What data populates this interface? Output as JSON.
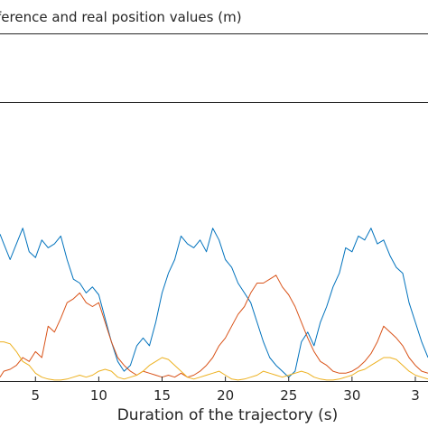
{
  "chart_data": {
    "type": "line",
    "title": "ference and real position values (m)",
    "xlabel": "Duration of the trajectory (s)",
    "ylabel": "",
    "xlim": [
      2.2,
      36.0
    ],
    "x_ticks": [
      "5",
      "10",
      "15",
      "20",
      "25",
      "30",
      "3"
    ],
    "grid": false,
    "legend": "none",
    "series": [
      {
        "color": "#0072bd",
        "x": [
          2.2,
          2.5,
          3.0,
          3.5,
          4.0,
          4.5,
          5.0,
          5.5,
          6.0,
          6.5,
          7.0,
          7.5,
          8.0,
          8.5,
          9.0,
          9.5,
          10.0,
          10.5,
          11.0,
          11.5,
          12.0,
          12.5,
          13.0,
          13.5,
          14.0,
          14.5,
          15.0,
          15.5,
          16.0,
          16.5,
          17.0,
          17.5,
          18.0,
          18.5,
          19.0,
          19.5,
          20.0,
          20.5,
          21.0,
          21.5,
          22.0,
          22.5,
          23.0,
          23.5,
          24.0,
          24.5,
          25.0,
          25.5,
          26.0,
          26.5,
          27.0,
          27.5,
          28.0,
          28.5,
          29.0,
          29.5,
          30.0,
          30.5,
          31.0,
          31.5,
          32.0,
          32.5,
          33.0,
          33.5,
          34.0,
          34.5,
          35.0,
          35.5,
          36.0
        ],
        "y": [
          0.75,
          0.7,
          0.62,
          0.7,
          0.78,
          0.66,
          0.63,
          0.72,
          0.68,
          0.7,
          0.74,
          0.62,
          0.52,
          0.5,
          0.45,
          0.48,
          0.44,
          0.32,
          0.2,
          0.1,
          0.05,
          0.08,
          0.18,
          0.22,
          0.18,
          0.3,
          0.45,
          0.55,
          0.62,
          0.74,
          0.7,
          0.68,
          0.72,
          0.66,
          0.78,
          0.72,
          0.62,
          0.58,
          0.5,
          0.45,
          0.4,
          0.3,
          0.2,
          0.12,
          0.08,
          0.05,
          0.02,
          0.05,
          0.2,
          0.25,
          0.18,
          0.3,
          0.38,
          0.48,
          0.55,
          0.68,
          0.66,
          0.74,
          0.72,
          0.78,
          0.7,
          0.72,
          0.64,
          0.58,
          0.55,
          0.4,
          0.3,
          0.2,
          0.12
        ]
      },
      {
        "color": "#d95319",
        "x": [
          2.2,
          2.5,
          3.0,
          3.5,
          4.0,
          4.5,
          5.0,
          5.5,
          6.0,
          6.5,
          7.0,
          7.5,
          8.0,
          8.5,
          9.0,
          9.5,
          10.0,
          10.5,
          11.0,
          11.5,
          12.0,
          12.5,
          13.0,
          13.5,
          14.0,
          14.5,
          15.0,
          15.5,
          16.0,
          16.5,
          17.0,
          17.5,
          18.0,
          18.5,
          19.0,
          19.5,
          20.0,
          20.5,
          21.0,
          21.5,
          22.0,
          22.5,
          23.0,
          23.5,
          24.0,
          24.5,
          25.0,
          25.5,
          26.0,
          26.5,
          27.0,
          27.5,
          28.0,
          28.5,
          29.0,
          29.5,
          30.0,
          30.5,
          31.0,
          31.5,
          32.0,
          32.5,
          33.0,
          33.5,
          34.0,
          34.5,
          35.0,
          35.5,
          36.0
        ],
        "y": [
          0.02,
          0.05,
          0.06,
          0.08,
          0.12,
          0.1,
          0.15,
          0.12,
          0.28,
          0.25,
          0.32,
          0.4,
          0.42,
          0.45,
          0.4,
          0.38,
          0.4,
          0.3,
          0.2,
          0.12,
          0.08,
          0.05,
          0.03,
          0.05,
          0.04,
          0.03,
          0.02,
          0.03,
          0.02,
          0.04,
          0.02,
          0.03,
          0.05,
          0.08,
          0.12,
          0.18,
          0.22,
          0.28,
          0.34,
          0.38,
          0.45,
          0.5,
          0.5,
          0.52,
          0.54,
          0.48,
          0.44,
          0.38,
          0.3,
          0.22,
          0.15,
          0.1,
          0.08,
          0.05,
          0.04,
          0.04,
          0.05,
          0.07,
          0.1,
          0.14,
          0.2,
          0.28,
          0.25,
          0.22,
          0.18,
          0.12,
          0.08,
          0.05,
          0.04
        ]
      },
      {
        "color": "#edb120",
        "x": [
          2.2,
          2.5,
          3.0,
          3.5,
          4.0,
          4.5,
          5.0,
          5.5,
          6.0,
          6.5,
          7.0,
          7.5,
          8.0,
          8.5,
          9.0,
          9.5,
          10.0,
          10.5,
          11.0,
          11.5,
          12.0,
          12.5,
          13.0,
          13.5,
          14.0,
          14.5,
          15.0,
          15.5,
          16.0,
          16.5,
          17.0,
          17.5,
          18.0,
          18.5,
          19.0,
          19.5,
          20.0,
          20.5,
          21.0,
          21.5,
          22.0,
          22.5,
          23.0,
          23.5,
          24.0,
          24.5,
          25.0,
          25.5,
          26.0,
          26.5,
          27.0,
          27.5,
          28.0,
          28.5,
          29.0,
          29.5,
          30.0,
          30.5,
          31.0,
          31.5,
          32.0,
          32.5,
          33.0,
          33.5,
          34.0,
          34.5,
          35.0,
          35.5,
          36.0
        ],
        "y": [
          0.2,
          0.2,
          0.19,
          0.15,
          0.1,
          0.08,
          0.04,
          0.02,
          0.01,
          0.005,
          0.005,
          0.01,
          0.02,
          0.03,
          0.02,
          0.03,
          0.05,
          0.06,
          0.05,
          0.02,
          0.01,
          0.02,
          0.03,
          0.05,
          0.08,
          0.1,
          0.12,
          0.11,
          0.08,
          0.05,
          0.02,
          0.01,
          0.02,
          0.03,
          0.04,
          0.05,
          0.03,
          0.01,
          0.005,
          0.01,
          0.02,
          0.03,
          0.05,
          0.04,
          0.03,
          0.02,
          0.03,
          0.04,
          0.05,
          0.04,
          0.02,
          0.01,
          0.005,
          0.005,
          0.01,
          0.02,
          0.03,
          0.05,
          0.06,
          0.08,
          0.1,
          0.12,
          0.12,
          0.11,
          0.08,
          0.05,
          0.03,
          0.02,
          0.01
        ]
      }
    ]
  }
}
